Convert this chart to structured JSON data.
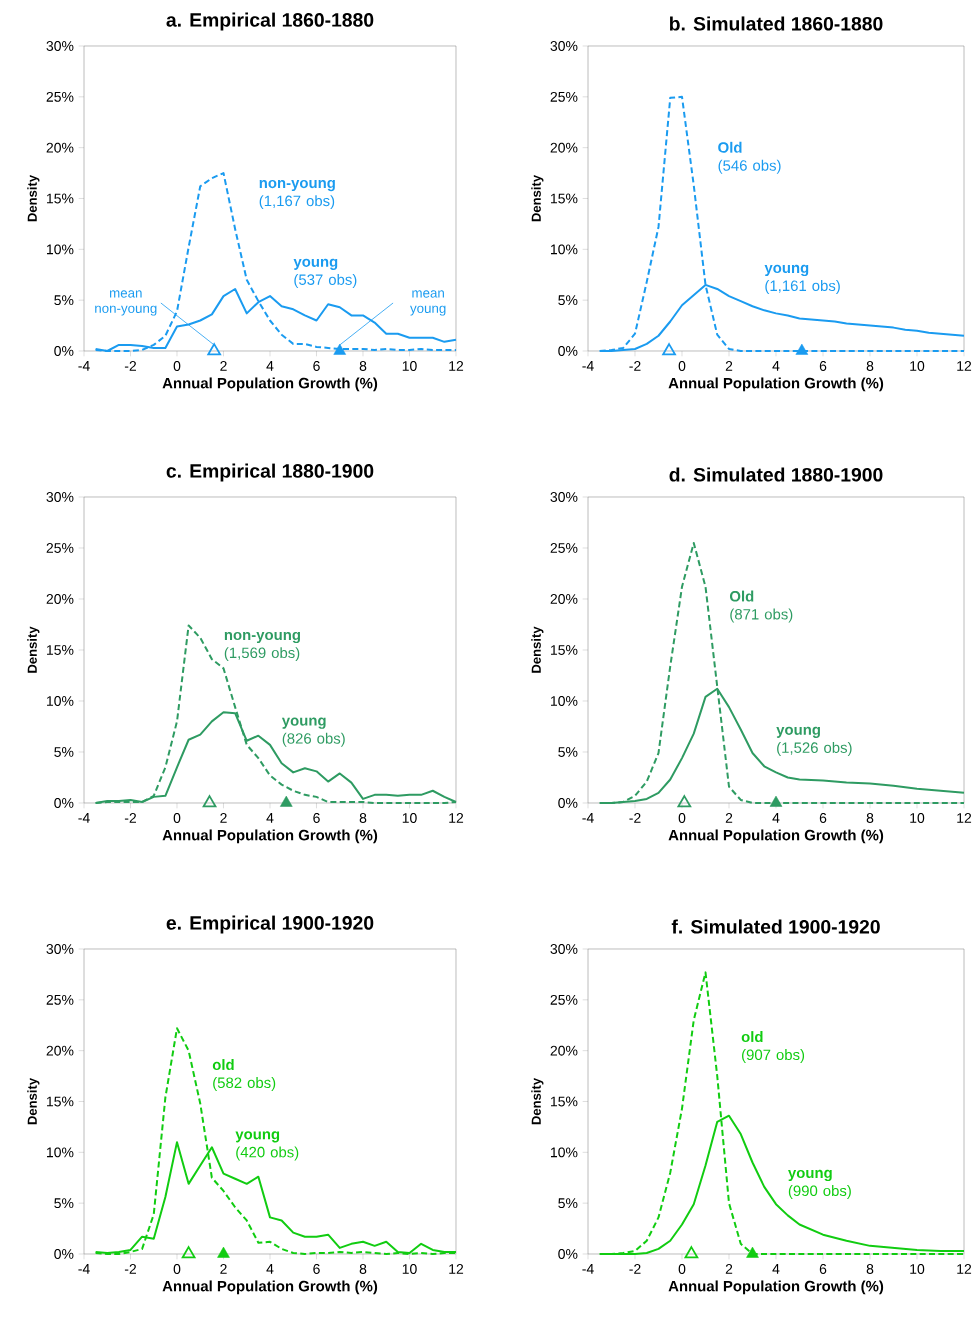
{
  "chart_data": [
    {
      "type": "line",
      "title": "a. Empirical 1860-1880",
      "xlabel": "Annual Population Growth (%)",
      "ylabel": "Density",
      "xlim": [
        -4,
        12
      ],
      "ylim": [
        0,
        30
      ],
      "xticks": [
        -4,
        -2,
        0,
        2,
        4,
        6,
        8,
        10,
        12
      ],
      "yticks": [
        {
          "value": 0,
          "label": "0%"
        },
        {
          "value": 5,
          "label": "5%"
        },
        {
          "value": 10,
          "label": "10%"
        },
        {
          "value": 15,
          "label": "15%"
        },
        {
          "value": 20,
          "label": "20%"
        },
        {
          "value": 25,
          "label": "25%"
        },
        {
          "value": 30,
          "label": "30%"
        }
      ],
      "series": [
        {
          "name": "**non-young** (1,167 obs)",
          "color": "#1a9bf0",
          "line_style": "dashed",
          "x": [
            -3.5,
            -3,
            -2.5,
            -2,
            -1.5,
            -1,
            -0.5,
            0,
            0.5,
            1,
            1.5,
            2,
            2.5,
            3,
            3.5,
            4,
            4.5,
            5,
            5.5,
            6,
            6.5,
            7,
            7.5,
            8,
            8.5,
            9,
            9.5,
            10,
            10.5,
            11,
            11.5,
            12
          ],
          "values": [
            0.1,
            0,
            0,
            0,
            0.1,
            0.6,
            1.5,
            3.9,
            10.2,
            16.2,
            17.0,
            17.5,
            12.0,
            7.0,
            4.9,
            3.0,
            1.6,
            0.7,
            0.7,
            0.4,
            0.3,
            0.2,
            0.2,
            0.2,
            0.1,
            0.2,
            0.1,
            0.1,
            0.2,
            0.1,
            0.1,
            0.1
          ]
        },
        {
          "name": "**young** (537 obs)",
          "color": "#1a9bf0",
          "line_style": "solid",
          "x": [
            -3.5,
            -3,
            -2.5,
            -2,
            -1.5,
            -1,
            -0.5,
            0,
            0.5,
            1,
            1.5,
            2,
            2.5,
            3,
            3.5,
            4,
            4.5,
            5,
            5.5,
            6,
            6.5,
            7,
            7.5,
            8,
            8.5,
            9,
            9.5,
            10,
            10.5,
            11,
            11.5,
            12
          ],
          "values": [
            0.2,
            0,
            0.6,
            0.6,
            0.5,
            0.3,
            0.3,
            2.4,
            2.6,
            3.0,
            3.6,
            5.4,
            6.1,
            3.7,
            4.8,
            5.4,
            4.4,
            4.1,
            3.5,
            3.0,
            4.6,
            4.3,
            3.5,
            3.5,
            2.8,
            1.7,
            1.7,
            1.3,
            1.3,
            1.3,
            0.9,
            1.1
          ]
        },
        {
          "type": "scatter",
          "color": "#1a9bf0",
          "marker": "triangle",
          "x": [
            1.6
          ],
          "values": [
            0
          ]
        },
        {
          "type": "scatter",
          "color": "#1a9bf0",
          "marker": "triangle",
          "x": [
            7.0
          ],
          "values": [
            0
          ]
        }
      ],
      "annotations": [
        {
          "text": "mean non-young",
          "x": 1.6,
          "y": 0
        },
        {
          "text": "mean young",
          "x": 7.0,
          "y": 0
        }
      ]
    },
    {
      "type": "line",
      "title": "b. Simulated 1860-1880",
      "xlabel": "Annual Population Growth (%)",
      "ylabel": "Density",
      "xlim": [
        -4,
        12
      ],
      "ylim": [
        0,
        30
      ],
      "xticks": [
        -4,
        -2,
        0,
        2,
        4,
        6,
        8,
        10,
        12
      ],
      "yticks": [
        {
          "value": 0,
          "label": "0%"
        },
        {
          "value": 5,
          "label": "5%"
        },
        {
          "value": 10,
          "label": "10%"
        },
        {
          "value": 15,
          "label": "15%"
        },
        {
          "value": 20,
          "label": "20%"
        },
        {
          "value": 25,
          "label": "25%"
        },
        {
          "value": 30,
          "label": "30%"
        }
      ],
      "series": [
        {
          "name": "**Old** (546 obs)",
          "color": "#1a9bf0",
          "line_style": "dashed",
          "x": [
            -3.5,
            -3,
            -2.5,
            -2,
            -1.5,
            -1,
            -0.5,
            0,
            0.5,
            1,
            1.5,
            2,
            2.5,
            3,
            3.5,
            4,
            4.5,
            5,
            5.5,
            6,
            6.5,
            7,
            7.5,
            8,
            8.5,
            9,
            9.5,
            10,
            10.5,
            11,
            11.5,
            12
          ],
          "values": [
            0,
            0.1,
            0.3,
            1.7,
            6.8,
            12.2,
            24.9,
            25.0,
            16.3,
            6.5,
            1.6,
            0.2,
            0,
            0,
            0,
            0,
            0,
            0,
            0,
            0,
            0,
            0,
            0,
            0,
            0,
            0,
            0,
            0,
            0,
            0,
            0,
            0
          ]
        },
        {
          "name": "**young** (1,161 obs)",
          "color": "#1a9bf0",
          "line_style": "solid",
          "x": [
            -3.5,
            -3,
            -2.5,
            -2,
            -1.5,
            -1,
            -0.5,
            0,
            0.5,
            1,
            1.5,
            2,
            2.5,
            3,
            3.5,
            4,
            4.5,
            5,
            5.5,
            6,
            6.5,
            7,
            7.5,
            8,
            8.5,
            9,
            9.5,
            10,
            10.5,
            11,
            11.5,
            12
          ],
          "values": [
            0,
            0,
            0.1,
            0.2,
            0.7,
            1.5,
            2.9,
            4.5,
            5.5,
            6.5,
            6.1,
            5.4,
            4.9,
            4.4,
            4.0,
            3.7,
            3.5,
            3.2,
            3.1,
            3.0,
            2.9,
            2.7,
            2.6,
            2.5,
            2.4,
            2.3,
            2.1,
            2.0,
            1.8,
            1.7,
            1.6,
            1.5
          ]
        },
        {
          "type": "scatter",
          "color": "#1a9bf0",
          "marker": "triangle",
          "x": [
            -0.55
          ],
          "values": [
            0
          ]
        },
        {
          "type": "scatter",
          "color": "#1a9bf0",
          "marker": "triangle",
          "x": [
            5.1
          ],
          "values": [
            0
          ]
        }
      ]
    },
    {
      "type": "line",
      "title": "c.  Empirical 1880-1900",
      "xlabel": "Annual Population Growth (%)",
      "ylabel": "Density",
      "xlim": [
        -4,
        12
      ],
      "ylim": [
        0,
        30
      ],
      "xticks": [
        -4,
        -2,
        0,
        2,
        4,
        6,
        8,
        10,
        12
      ],
      "yticks": [
        {
          "value": 0,
          "label": "0%"
        },
        {
          "value": 5,
          "label": "5%"
        },
        {
          "value": 10,
          "label": "10%"
        },
        {
          "value": 15,
          "label": "15%"
        },
        {
          "value": 20,
          "label": "20%"
        },
        {
          "value": 25,
          "label": "25%"
        },
        {
          "value": 30,
          "label": "30%"
        }
      ],
      "series": [
        {
          "name": "**non-young** (1,569 obs)",
          "color": "#2e9b62",
          "line_style": "dashed",
          "x": [
            -3.5,
            -3,
            -2.5,
            -2,
            -1.5,
            -1,
            -0.5,
            0,
            0.5,
            1,
            1.5,
            2,
            2.5,
            3,
            3.5,
            4,
            4.5,
            5,
            5.5,
            6,
            6.5,
            7,
            7.5,
            8,
            8.5,
            9,
            9.5,
            10,
            10.5,
            11,
            11.5,
            12
          ],
          "values": [
            0,
            0.1,
            0.1,
            0.1,
            0.1,
            0.7,
            3.5,
            8.0,
            17.4,
            16.2,
            14.1,
            13.2,
            9.4,
            5.7,
            4.4,
            2.7,
            1.8,
            1.2,
            0.8,
            0.6,
            0.1,
            0.1,
            0.1,
            0.1,
            0,
            0,
            0,
            0,
            0,
            0,
            0,
            0.1
          ]
        },
        {
          "name": "**young** (826 obs)",
          "color": "#2e9b62",
          "line_style": "solid",
          "x": [
            -3.5,
            -3,
            -2.5,
            -2,
            -1.5,
            -1,
            -0.5,
            0,
            0.5,
            1,
            1.5,
            2,
            2.5,
            3,
            3.5,
            4,
            4.5,
            5,
            5.5,
            6,
            6.5,
            7,
            7.5,
            8,
            8.5,
            9,
            9.5,
            10,
            10.5,
            11,
            11.5,
            12
          ],
          "values": [
            0,
            0.2,
            0.2,
            0.3,
            0.1,
            0.6,
            0.7,
            3.5,
            6.2,
            6.7,
            8.0,
            8.9,
            8.8,
            6.1,
            6.6,
            5.7,
            3.9,
            3.0,
            3.4,
            3.1,
            2.1,
            2.9,
            2.0,
            0.4,
            0.8,
            0.8,
            0.7,
            0.8,
            0.8,
            1.2,
            0.6,
            0.1
          ]
        },
        {
          "type": "scatter",
          "color": "#2e9b62",
          "marker": "triangle",
          "x": [
            1.4
          ],
          "values": [
            0
          ]
        },
        {
          "type": "scatter",
          "color": "#2e9b62",
          "marker": "triangle",
          "x": [
            4.7
          ],
          "values": [
            0
          ]
        }
      ]
    },
    {
      "type": "line",
      "title": "d. Simulated 1880-1900",
      "xlabel": "Annual Population Growth (%)",
      "ylabel": "Density",
      "xlim": [
        -4,
        12
      ],
      "ylim": [
        0,
        30
      ],
      "xticks": [
        -4,
        -2,
        0,
        2,
        4,
        6,
        8,
        10,
        12
      ],
      "yticks": [
        {
          "value": 0,
          "label": "0%"
        },
        {
          "value": 5,
          "label": "5%"
        },
        {
          "value": 10,
          "label": "10%"
        },
        {
          "value": 15,
          "label": "15%"
        },
        {
          "value": 20,
          "label": "20%"
        },
        {
          "value": 25,
          "label": "25%"
        },
        {
          "value": 30,
          "label": "30%"
        }
      ],
      "series": [
        {
          "name": "**Old** (871 obs)",
          "color": "#2e9b62",
          "line_style": "dashed",
          "x": [
            -3.5,
            -3,
            -2.5,
            -2,
            -1.5,
            -1,
            -0.5,
            0,
            0.5,
            1,
            1.5,
            2,
            2.5,
            3,
            3.5,
            4,
            4.5,
            5,
            5.5,
            6,
            6.5,
            7,
            7.5,
            8,
            8.5,
            9,
            9.5,
            10,
            10.5,
            11,
            11.5,
            12
          ],
          "values": [
            0,
            0,
            0.1,
            0.7,
            2.1,
            4.9,
            13.4,
            21.2,
            25.5,
            21.2,
            11.4,
            1.6,
            0.3,
            0,
            0,
            0,
            0,
            0,
            0,
            0,
            0,
            0,
            0,
            0,
            0,
            0,
            0,
            0,
            0,
            0,
            0,
            0
          ]
        },
        {
          "name": "**young** (1,526 obs)",
          "color": "#2e9b62",
          "line_style": "solid",
          "x": [
            -3.5,
            -3,
            -2.5,
            -2,
            -1.5,
            -1,
            -0.5,
            0,
            0.5,
            1,
            1.5,
            2,
            2.5,
            3,
            3.5,
            4,
            4.5,
            5,
            6,
            7,
            8,
            9,
            10,
            11,
            12
          ],
          "values": [
            0,
            0,
            0.1,
            0.2,
            0.4,
            1.0,
            2.3,
            4.4,
            6.8,
            10.4,
            11.2,
            9.4,
            7.2,
            4.9,
            3.6,
            3.0,
            2.5,
            2.3,
            2.2,
            2.0,
            1.9,
            1.7,
            1.4,
            1.2,
            1.0
          ]
        },
        {
          "type": "scatter",
          "color": "#2e9b62",
          "marker": "triangle",
          "x": [
            0.1
          ],
          "values": [
            0
          ]
        },
        {
          "type": "scatter",
          "color": "#2e9b62",
          "marker": "triangle",
          "x": [
            4.0
          ],
          "values": [
            0
          ]
        }
      ]
    },
    {
      "type": "line",
      "title": "e. Empirical 1900-1920",
      "xlabel": "Annual Population Growth (%)",
      "ylabel": "Density",
      "xlim": [
        -4,
        12
      ],
      "ylim": [
        0,
        30
      ],
      "xticks": [
        -4,
        -2,
        0,
        2,
        4,
        6,
        8,
        10,
        12
      ],
      "yticks": [
        {
          "value": 0,
          "label": "0%"
        },
        {
          "value": 5,
          "label": "5%"
        },
        {
          "value": 10,
          "label": "10%"
        },
        {
          "value": 15,
          "label": "15%"
        },
        {
          "value": 20,
          "label": "20%"
        },
        {
          "value": 25,
          "label": "25%"
        },
        {
          "value": 30,
          "label": "30%"
        }
      ],
      "series": [
        {
          "name": "**old** (582 obs)",
          "color": "#11cc11",
          "line_style": "dashed",
          "x": [
            -3.5,
            -3,
            -2.5,
            -2,
            -1.5,
            -1,
            -0.5,
            0,
            0.5,
            1,
            1.5,
            2,
            2.5,
            3,
            3.5,
            4,
            4.5,
            5,
            5.5,
            6,
            6.5,
            7,
            7.5,
            8,
            8.5,
            9,
            9.5,
            10,
            10.5,
            11,
            11.5,
            12
          ],
          "values": [
            0.1,
            0,
            0,
            0.2,
            0.5,
            3.9,
            15.4,
            22.2,
            20.0,
            14.8,
            7.5,
            6.2,
            4.6,
            3.3,
            1.1,
            1.2,
            0.5,
            0.1,
            0,
            0.1,
            0.1,
            0.2,
            0.1,
            0.2,
            0.1,
            0,
            0.1,
            0,
            0.1,
            0,
            0.1,
            0.1
          ]
        },
        {
          "name": "**young** (420 obs)",
          "color": "#11cc11",
          "line_style": "solid",
          "x": [
            -3.5,
            -3,
            -2.5,
            -2,
            -1.5,
            -1,
            -0.5,
            0,
            0.5,
            1,
            1.5,
            2,
            2.5,
            3,
            3.5,
            4,
            4.5,
            5,
            5.5,
            6,
            6.5,
            7,
            7.5,
            8,
            8.5,
            9,
            9.5,
            10,
            10.5,
            11,
            11.5,
            12
          ],
          "values": [
            0.2,
            0.1,
            0.2,
            0.4,
            1.7,
            1.5,
            5.6,
            11.0,
            6.9,
            8.7,
            10.5,
            7.9,
            7.4,
            6.9,
            7.6,
            3.6,
            3.3,
            2.1,
            1.7,
            1.7,
            1.9,
            0.6,
            1.0,
            1.2,
            0.8,
            1.2,
            0.2,
            0.1,
            1.0,
            0.4,
            0.2,
            0.2
          ]
        },
        {
          "type": "scatter",
          "color": "#11cc11",
          "marker": "triangle",
          "x": [
            0.5
          ],
          "values": [
            0
          ]
        },
        {
          "type": "scatter",
          "color": "#11cc11",
          "marker": "triangle",
          "x": [
            2.0
          ],
          "values": [
            0
          ]
        }
      ]
    },
    {
      "type": "line",
      "title": "f. Simulated 1900-1920",
      "xlabel": "Annual Population Growth (%)",
      "ylabel": "Density",
      "xlim": [
        -4,
        12
      ],
      "ylim": [
        0,
        30
      ],
      "xticks": [
        -4,
        -2,
        0,
        2,
        4,
        6,
        8,
        10,
        12
      ],
      "yticks": [
        {
          "value": 0,
          "label": "0%"
        },
        {
          "value": 5,
          "label": "5%"
        },
        {
          "value": 10,
          "label": "10%"
        },
        {
          "value": 15,
          "label": "15%"
        },
        {
          "value": 20,
          "label": "20%"
        },
        {
          "value": 25,
          "label": "25%"
        },
        {
          "value": 30,
          "label": "30%"
        }
      ],
      "series": [
        {
          "name": "**old** (907 obs)",
          "color": "#11cc11",
          "line_style": "dashed",
          "x": [
            -3.5,
            -3,
            -2.5,
            -2,
            -1.5,
            -1,
            -0.5,
            0,
            0.5,
            1,
            1.5,
            2,
            2.5,
            3,
            3.5,
            4,
            4.5,
            5,
            5.5,
            6,
            6.5,
            7,
            7.5,
            8,
            8.5,
            9,
            9.5,
            10,
            10.5,
            11,
            11.5,
            12
          ],
          "values": [
            0,
            0,
            0.1,
            0.3,
            1.3,
            3.6,
            8.0,
            14.3,
            23.0,
            27.7,
            17.5,
            5.0,
            1.0,
            0,
            0,
            0,
            0,
            0,
            0,
            0,
            0,
            0,
            0,
            0,
            0,
            0,
            0,
            0,
            0,
            0,
            0,
            0
          ]
        },
        {
          "name": "**young** (990 obs)",
          "color": "#11cc11",
          "line_style": "solid",
          "x": [
            -3.5,
            -3,
            -2.5,
            -2,
            -1.5,
            -1,
            -0.5,
            0,
            0.5,
            1,
            1.5,
            2,
            2.5,
            3,
            3.5,
            4,
            4.5,
            5,
            6,
            7,
            8,
            9,
            10,
            11,
            12
          ],
          "values": [
            0,
            0,
            0,
            0,
            0.1,
            0.5,
            1.3,
            2.9,
            4.9,
            8.7,
            13.0,
            13.6,
            11.8,
            9.0,
            6.6,
            4.9,
            3.8,
            2.9,
            1.9,
            1.3,
            0.8,
            0.6,
            0.4,
            0.3,
            0.3
          ]
        },
        {
          "type": "scatter",
          "color": "#11cc11",
          "marker": "triangle",
          "x": [
            0.4
          ],
          "values": [
            0
          ]
        },
        {
          "type": "scatter",
          "color": "#11cc11",
          "marker": "triangle",
          "x": [
            3.0
          ],
          "values": [
            0
          ]
        }
      ]
    }
  ]
}
